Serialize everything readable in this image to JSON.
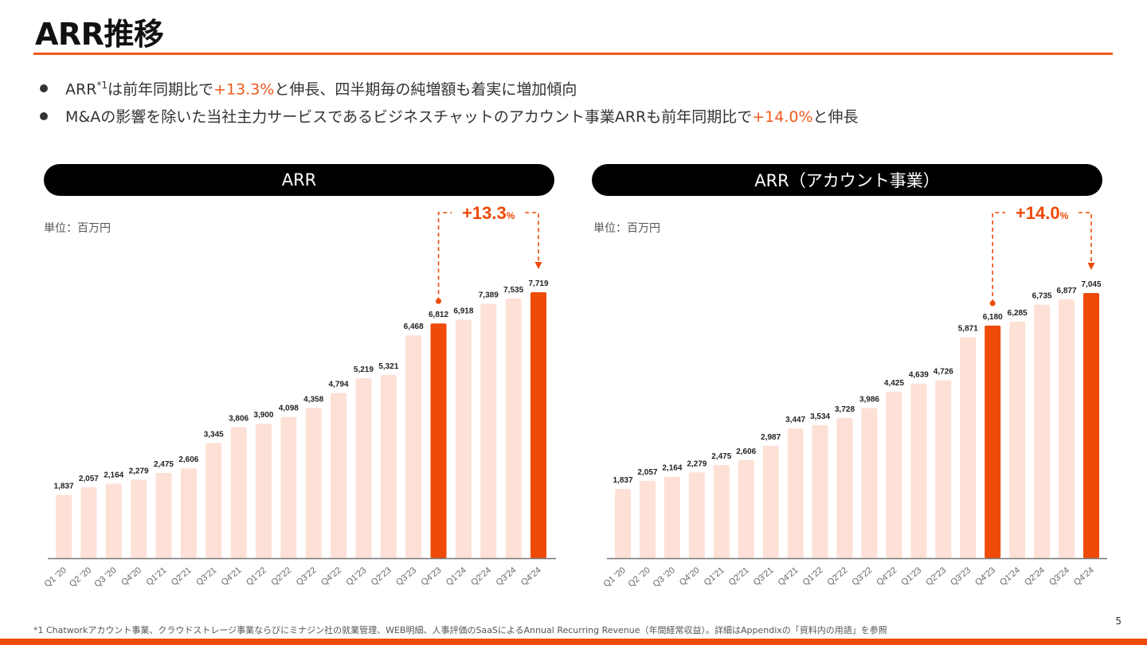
{
  "page": {
    "title": "ARR推移",
    "page_number": "5",
    "footnote": "*1 Chatworkアカウント事業、クラウドストレージ事業ならびにミナジン社の就業管理、WEB明細、人事評価のSaaSによるAnnual Recurring Revenue（年間経常収益）。詳細はAppendixの「資料内の用語」を参照"
  },
  "colors": {
    "accent": "#ee4a08",
    "bar_light": "#fde0d6",
    "bar_highlight": "#ee4a08",
    "pill_bg": "#000000"
  },
  "bullets": [
    {
      "pre": "ARR",
      "sup": "*1",
      "mid": "は前年同期比で",
      "highlight": "+13.3%",
      "post": "と伸長、四半期毎の純増額も着実に増加傾向"
    },
    {
      "pre": "M&Aの影響を除いた当社主力サービスであるビジネスチャットのアカウント事業ARRも前年同期比で",
      "highlight": "+14.0%",
      "post": "と伸長"
    }
  ],
  "chart_data": [
    {
      "type": "bar",
      "title": "ARR",
      "unit_label": "単位：百万円",
      "growth_annotation": {
        "value": "+13.3",
        "suffix": "%",
        "from": "Q4'23",
        "to": "Q4'24"
      },
      "categories": [
        "Q1 '20",
        "Q2 '20",
        "Q3 '20",
        "Q4'20",
        "Q1'21",
        "Q2'21",
        "Q3'21",
        "Q4'21",
        "Q1'22",
        "Q2'22",
        "Q3'22",
        "Q4'22",
        "Q1'23",
        "Q2'23",
        "Q3'23",
        "Q4'23",
        "Q1'24",
        "Q2'24",
        "Q3'24",
        "Q4'24"
      ],
      "values": [
        1837,
        2057,
        2164,
        2279,
        2475,
        2606,
        3345,
        3806,
        3900,
        4098,
        4358,
        4794,
        5219,
        5321,
        6468,
        6812,
        6918,
        7389,
        7535,
        7719
      ],
      "labels": [
        "1,837",
        "2,057",
        "2,164",
        "2,279",
        "2,475",
        "2,606",
        "3,345",
        "3,806",
        "3,900",
        "4,098",
        "4,358",
        "4,794",
        "5,219",
        "5,321",
        "6,468",
        "6,812",
        "6,918",
        "7,389",
        "7,535",
        "7,719"
      ],
      "highlighted": [
        "Q4'23",
        "Q4'24"
      ],
      "xlabel": "",
      "ylabel": "",
      "ylim": [
        0,
        7719
      ],
      "grid": false,
      "legend": "none"
    },
    {
      "type": "bar",
      "title": "ARR（アカウント事業）",
      "unit_label": "単位：百万円",
      "growth_annotation": {
        "value": "+14.0",
        "suffix": "%",
        "from": "Q4'23",
        "to": "Q4'24"
      },
      "categories": [
        "Q1 '20",
        "Q2 '20",
        "Q3 '20",
        "Q4'20",
        "Q1'21",
        "Q2'21",
        "Q3'21",
        "Q4'21",
        "Q1'22",
        "Q2'22",
        "Q3'22",
        "Q4'22",
        "Q1'23",
        "Q2'23",
        "Q3'23",
        "Q4'23",
        "Q1'24",
        "Q2'24",
        "Q3'24",
        "Q4'24"
      ],
      "values": [
        1837,
        2057,
        2164,
        2279,
        2475,
        2606,
        2987,
        3447,
        3534,
        3728,
        3986,
        4425,
        4639,
        4726,
        5871,
        6180,
        6285,
        6735,
        6877,
        7045
      ],
      "labels": [
        "1,837",
        "2,057",
        "2,164",
        "2,279",
        "2,475",
        "2,606",
        "2,987",
        "3,447",
        "3,534",
        "3,728",
        "3,986",
        "4,425",
        "4,639",
        "4,726",
        "5,871",
        "6,180",
        "6,285",
        "6,735",
        "6,877",
        "7,045"
      ],
      "highlighted": [
        "Q4'23",
        "Q4'24"
      ],
      "xlabel": "",
      "ylabel": "",
      "ylim": [
        0,
        7045
      ],
      "grid": false,
      "legend": "none"
    }
  ]
}
